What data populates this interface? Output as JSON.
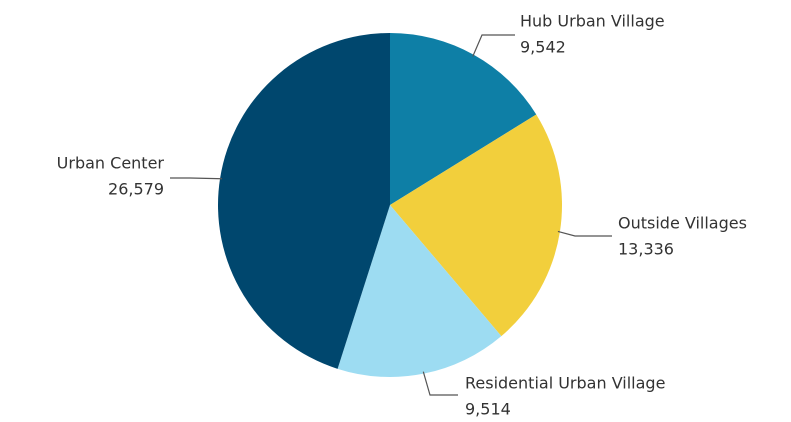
{
  "chart_data": {
    "type": "pie",
    "categories": [
      "Hub Urban Village",
      "Outside Villages",
      "Residential Urban Village",
      "Urban Center"
    ],
    "values": [
      9542,
      13336,
      9514,
      26579
    ],
    "value_labels": [
      "9,542",
      "13,336",
      "9,514",
      "26,579"
    ],
    "colors": [
      "#0e7fa6",
      "#f2cf3c",
      "#9ddcf2",
      "#00476e"
    ]
  }
}
